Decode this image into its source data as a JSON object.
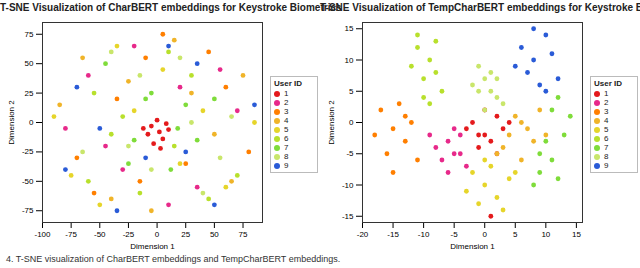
{
  "caption": "4. T-SNE visualization of CharBERT embeddings and TempCharBERT embeddings.",
  "chart_data": [
    {
      "type": "scatter",
      "title": "T-SNE Visualization of CharBERT embeddings for Keystroke Biometrics",
      "x_label": "Dimension 1",
      "y_label": "Dimension 2",
      "legend_title": "User ID",
      "marker": "circle",
      "xlim": [
        -100,
        92
      ],
      "ylim": [
        -85,
        85
      ],
      "xticks": [
        -100,
        -75,
        -50,
        -25,
        0,
        25,
        50,
        75
      ],
      "yticks": [
        -75,
        -50,
        -25,
        0,
        25,
        50,
        75
      ],
      "series": [
        {
          "name": "1",
          "color": "#e41a1c",
          "x": [
            -5,
            2,
            8,
            -8,
            0,
            5,
            -3,
            10,
            -12,
            3
          ],
          "y": [
            -3,
            -8,
            -1,
            -10,
            2,
            -14,
            -18,
            -6,
            -5,
            -22
          ]
        },
        {
          "name": "2",
          "color": "#e7298a",
          "x": [
            -60,
            35,
            -20,
            70,
            10,
            -45,
            55,
            -80,
            20,
            -30
          ],
          "y": [
            40,
            -55,
            65,
            10,
            -70,
            -20,
            45,
            -5,
            30,
            -40
          ]
        },
        {
          "name": "3",
          "color": "#ff7f00",
          "x": [
            -70,
            45,
            -35,
            80,
            -10,
            25,
            -55,
            60,
            -15,
            5
          ],
          "y": [
            -30,
            60,
            20,
            -25,
            55,
            -35,
            -60,
            30,
            -50,
            75
          ]
        },
        {
          "name": "4",
          "color": "#f0b429",
          "x": [
            -85,
            30,
            -40,
            65,
            -25,
            50,
            15,
            -65,
            75,
            -5
          ],
          "y": [
            15,
            25,
            -65,
            -50,
            35,
            -10,
            70,
            55,
            40,
            -75
          ]
        },
        {
          "name": "5",
          "color": "#e6d52a",
          "x": [
            -50,
            40,
            -75,
            20,
            -20,
            85,
            -35,
            60,
            5,
            -90
          ],
          "y": [
            -70,
            10,
            -45,
            -35,
            10,
            0,
            65,
            -55,
            45,
            5
          ]
        },
        {
          "name": "6",
          "color": "#b8e02c",
          "x": [
            -30,
            15,
            -55,
            45,
            -15,
            30,
            -40,
            70,
            -60,
            10
          ],
          "y": [
            5,
            -20,
            25,
            -65,
            -60,
            40,
            -10,
            -45,
            -50,
            60
          ]
        },
        {
          "name": "7",
          "color": "#7fdc3a",
          "x": [
            -20,
            25,
            -10,
            35,
            -45,
            12,
            -25,
            50,
            -5,
            18
          ],
          "y": [
            -15,
            15,
            20,
            -15,
            50,
            -40,
            -35,
            20,
            25,
            -5
          ]
        },
        {
          "name": "8",
          "color": "#c9e66b",
          "x": [
            -40,
            55,
            -65,
            20,
            -25,
            40,
            -5,
            65,
            -15,
            30
          ],
          "y": [
            60,
            -30,
            -25,
            55,
            -20,
            -60,
            -40,
            5,
            40,
            0
          ]
        },
        {
          "name": "9",
          "color": "#2a5bd7",
          "x": [
            -80,
            10,
            -50,
            85,
            -35,
            35,
            -70,
            50,
            25,
            -10
          ],
          "y": [
            -40,
            65,
            -5,
            15,
            -75,
            50,
            30,
            -70,
            -25,
            -30
          ]
        }
      ]
    },
    {
      "type": "scatter",
      "title": "T-SNE Visualization of TempCharBERT embeddings for Keystroke Biometrics",
      "x_label": "Dimension 1",
      "y_label": "Dimension 2",
      "legend_title": "User ID",
      "marker": "circle",
      "xlim": [
        -20,
        16
      ],
      "ylim": [
        -16,
        16
      ],
      "xticks": [
        -20,
        -15,
        -10,
        -5,
        0,
        5,
        10,
        15
      ],
      "yticks": [
        -15,
        -10,
        -5,
        0,
        5,
        10,
        15
      ],
      "series": [
        {
          "name": "1",
          "color": "#e41a1c",
          "x": [
            -2,
            0,
            2,
            -1,
            3,
            1,
            -3,
            4,
            0,
            2,
            -1,
            1
          ],
          "y": [
            0,
            -2,
            1,
            -4,
            -1,
            -3,
            -1,
            0,
            2,
            -5,
            -2,
            -15
          ]
        },
        {
          "name": "2",
          "color": "#e7298a",
          "x": [
            -6,
            -5,
            -7,
            -4,
            -8,
            -3,
            -6,
            -5,
            -9,
            -4
          ],
          "y": [
            -3,
            -5,
            -6,
            -2,
            -4,
            -7,
            -8,
            -1,
            -2,
            -5
          ]
        },
        {
          "name": "3",
          "color": "#ff7f00",
          "x": [
            -17,
            -15,
            -13,
            -16,
            -12,
            -18,
            -14,
            -11,
            -15,
            -13
          ],
          "y": [
            2,
            -1,
            -3,
            -5,
            0,
            -2,
            3,
            -6,
            -8,
            1
          ]
        },
        {
          "name": "4",
          "color": "#f0b429",
          "x": [
            4,
            6,
            8,
            5,
            3,
            7,
            9,
            2,
            6,
            10
          ],
          "y": [
            -2,
            0,
            -3,
            1,
            -4,
            -1,
            2,
            -5,
            -6,
            -2
          ]
        },
        {
          "name": "5",
          "color": "#e6d52a",
          "x": [
            -2,
            0,
            2,
            4,
            -1,
            1,
            3,
            -3,
            5,
            0
          ],
          "y": [
            -8,
            -10,
            -12,
            -9,
            -13,
            -7,
            -14,
            -11,
            -8,
            -6
          ]
        },
        {
          "name": "6",
          "color": "#b8e02c",
          "x": [
            -11,
            -9,
            -10,
            -8,
            -12,
            -7,
            -9,
            -11,
            -8,
            -10
          ],
          "y": [
            12,
            10,
            7,
            13,
            9,
            5,
            3,
            14,
            8,
            4
          ]
        },
        {
          "name": "7",
          "color": "#7fdc3a",
          "x": [
            9,
            11,
            12,
            10,
            13,
            8,
            14,
            11,
            9,
            12
          ],
          "y": [
            -8,
            -6,
            -9,
            -3,
            -2,
            -10,
            1,
            2,
            -5,
            4
          ]
        },
        {
          "name": "8",
          "color": "#c9e66b",
          "x": [
            -1,
            0,
            2,
            1,
            -2,
            3,
            0,
            -1,
            1,
            2
          ],
          "y": [
            5,
            7,
            4,
            8,
            6,
            3,
            2,
            9,
            5,
            7
          ]
        },
        {
          "name": "9",
          "color": "#2a5bd7",
          "x": [
            6,
            8,
            10,
            7,
            9,
            11,
            5,
            8,
            12,
            10
          ],
          "y": [
            12,
            10,
            14,
            8,
            6,
            11,
            9,
            15,
            7,
            5
          ]
        }
      ]
    }
  ]
}
